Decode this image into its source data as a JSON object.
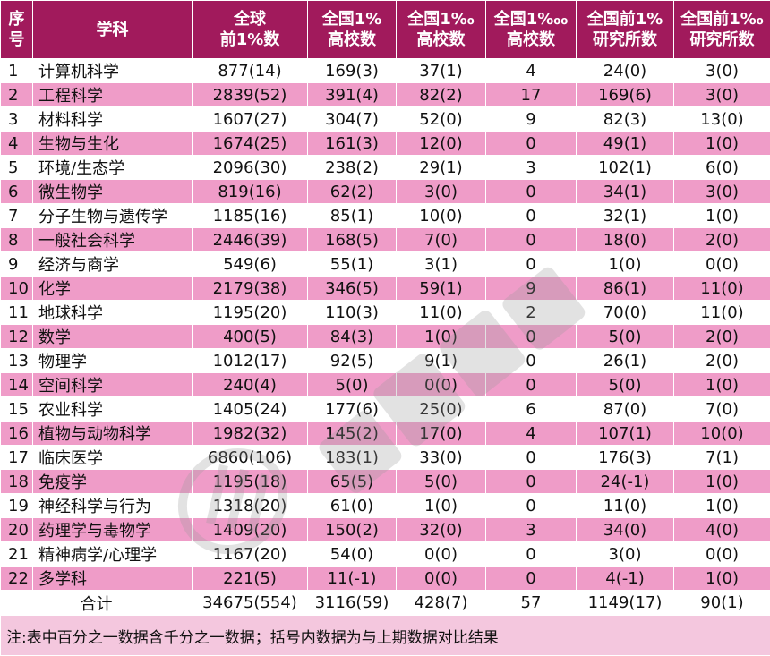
{
  "headers": {
    "idx": [
      "序",
      "号"
    ],
    "subject": "学科",
    "global": [
      "全球",
      "前1%数"
    ],
    "cn1": [
      "全国1%",
      "高校数"
    ],
    "cn1k": [
      "全国1‰",
      "高校数"
    ],
    "cn10k": [
      "全国1‱",
      "高校数"
    ],
    "inst1": [
      "全国前1%",
      "研究所数"
    ],
    "inst1k": [
      "全国前1‰",
      "研究所数"
    ]
  },
  "rows": [
    {
      "idx": "1",
      "subject": "计算机科学",
      "global": "877(14)",
      "cn1": "169(3)",
      "cn1k": "37(1)",
      "cn10k": "4",
      "inst1": "24(0)",
      "inst1k": "3(0)"
    },
    {
      "idx": "2",
      "subject": "工程科学",
      "global": "2839(52)",
      "cn1": "391(4)",
      "cn1k": "82(2)",
      "cn10k": "17",
      "inst1": "169(6)",
      "inst1k": "3(0)"
    },
    {
      "idx": "3",
      "subject": "材料科学",
      "global": "1607(27)",
      "cn1": "304(7)",
      "cn1k": "52(0)",
      "cn10k": "9",
      "inst1": "82(3)",
      "inst1k": "13(0)"
    },
    {
      "idx": "4",
      "subject": "生物与生化",
      "global": "1674(25)",
      "cn1": "161(3)",
      "cn1k": "12(0)",
      "cn10k": "0",
      "inst1": "49(1)",
      "inst1k": "1(0)"
    },
    {
      "idx": "5",
      "subject": "环境/生态学",
      "global": "2096(30)",
      "cn1": "238(2)",
      "cn1k": "29(1)",
      "cn10k": "3",
      "inst1": "102(1)",
      "inst1k": "6(0)"
    },
    {
      "idx": "6",
      "subject": "微生物学",
      "global": "819(16)",
      "cn1": "62(2)",
      "cn1k": "3(0)",
      "cn10k": "0",
      "inst1": "34(1)",
      "inst1k": "3(0)"
    },
    {
      "idx": "7",
      "subject": "分子生物与遗传学",
      "global": "1185(16)",
      "cn1": "85(1)",
      "cn1k": "10(0)",
      "cn10k": "0",
      "inst1": "32(1)",
      "inst1k": "1(0)"
    },
    {
      "idx": "8",
      "subject": "一般社会科学",
      "global": "2446(39)",
      "cn1": "168(5)",
      "cn1k": "7(0)",
      "cn10k": "0",
      "inst1": "18(0)",
      "inst1k": "2(0)"
    },
    {
      "idx": "9",
      "subject": "经济与商学",
      "global": "549(6)",
      "cn1": "55(1)",
      "cn1k": "3(1)",
      "cn10k": "0",
      "inst1": "1(0)",
      "inst1k": "0(0)"
    },
    {
      "idx": "10",
      "subject": "化学",
      "global": "2179(38)",
      "cn1": "346(5)",
      "cn1k": "59(1)",
      "cn10k": "9",
      "inst1": "86(1)",
      "inst1k": "11(0)"
    },
    {
      "idx": "11",
      "subject": "地球科学",
      "global": "1195(20)",
      "cn1": "110(3)",
      "cn1k": "11(0)",
      "cn10k": "2",
      "inst1": "70(0)",
      "inst1k": "11(0)"
    },
    {
      "idx": "12",
      "subject": "数学",
      "global": "400(5)",
      "cn1": "84(3)",
      "cn1k": "1(0)",
      "cn10k": "0",
      "inst1": "5(0)",
      "inst1k": "2(0)"
    },
    {
      "idx": "13",
      "subject": "物理学",
      "global": "1012(17)",
      "cn1": "92(5)",
      "cn1k": "9(1)",
      "cn10k": "0",
      "inst1": "26(1)",
      "inst1k": "2(0)"
    },
    {
      "idx": "14",
      "subject": "空间科学",
      "global": "240(4)",
      "cn1": "5(0)",
      "cn1k": "0(0)",
      "cn10k": "0",
      "inst1": "5(0)",
      "inst1k": "1(0)"
    },
    {
      "idx": "15",
      "subject": "农业科学",
      "global": "1405(24)",
      "cn1": "177(6)",
      "cn1k": "25(0)",
      "cn10k": "6",
      "inst1": "87(0)",
      "inst1k": "7(0)"
    },
    {
      "idx": "16",
      "subject": "植物与动物科学",
      "global": "1982(32)",
      "cn1": "145(2)",
      "cn1k": "17(0)",
      "cn10k": "4",
      "inst1": "107(1)",
      "inst1k": "10(0)"
    },
    {
      "idx": "17",
      "subject": "临床医学",
      "global": "6860(106)",
      "cn1": "183(1)",
      "cn1k": "33(0)",
      "cn10k": "0",
      "inst1": "176(3)",
      "inst1k": "7(1)"
    },
    {
      "idx": "18",
      "subject": "免疫学",
      "global": "1195(18)",
      "cn1": "65(5)",
      "cn1k": "5(0)",
      "cn10k": "0",
      "inst1": "24(-1)",
      "inst1k": "1(0)"
    },
    {
      "idx": "19",
      "subject": "神经科学与行为",
      "global": "1318(20)",
      "cn1": "61(0)",
      "cn1k": "1(0)",
      "cn10k": "0",
      "inst1": "11(0)",
      "inst1k": "1(0)"
    },
    {
      "idx": "20",
      "subject": "药理学与毒物学",
      "global": "1409(20)",
      "cn1": "150(2)",
      "cn1k": "32(0)",
      "cn10k": "3",
      "inst1": "34(0)",
      "inst1k": "4(0)"
    },
    {
      "idx": "21",
      "subject": "精神病学/心理学",
      "global": "1167(20)",
      "cn1": "54(0)",
      "cn1k": "0(0)",
      "cn10k": "0",
      "inst1": "3(0)",
      "inst1k": "0(0)"
    },
    {
      "idx": "22",
      "subject": "多学科",
      "global": "221(5)",
      "cn1": "11(-1)",
      "cn1k": "0(0)",
      "cn10k": "0",
      "inst1": "4(-1)",
      "inst1k": "1(0)"
    }
  ],
  "total": {
    "label": "合计",
    "global": "34675(554)",
    "cn1": "3116(59)",
    "cn1k": "428(7)",
    "cn10k": "57",
    "inst1": "1149(17)",
    "inst1k": "90(1)"
  },
  "note": "注:表中百分之一数据含千分之一数据；括号内数据为与上期数据对比结果",
  "colors": {
    "header_bg": "#a11a5c",
    "row_alt": "#ef9cc8",
    "note_bg": "#f4c7de"
  }
}
